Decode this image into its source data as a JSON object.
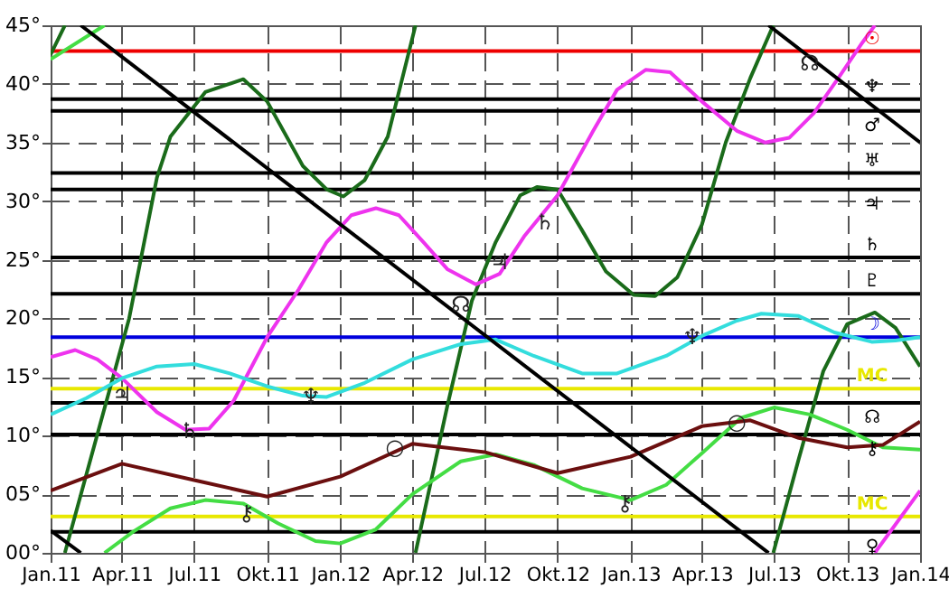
{
  "chart_data": {
    "type": "line",
    "xlim": [
      "2011-01-01",
      "2014-01-01"
    ],
    "xticks": [
      {
        "value": "2011-01-01",
        "label": "Jan.11"
      },
      {
        "value": "2011-04-01",
        "label": "Apr.11"
      },
      {
        "value": "2011-07-01",
        "label": "Jul.11"
      },
      {
        "value": "2011-10-01",
        "label": "Okt.11"
      },
      {
        "value": "2012-01-01",
        "label": "Jan.12"
      },
      {
        "value": "2012-04-01",
        "label": "Apr.12"
      },
      {
        "value": "2012-07-01",
        "label": "Jul.12"
      },
      {
        "value": "2012-10-01",
        "label": "Okt.12"
      },
      {
        "value": "2013-01-01",
        "label": "Jan.13"
      },
      {
        "value": "2013-04-01",
        "label": "Apr.13"
      },
      {
        "value": "2013-07-01",
        "label": "Jul.13"
      },
      {
        "value": "2013-10-01",
        "label": "Okt.13"
      },
      {
        "value": "2014-01-01",
        "label": "Jan.14"
      }
    ],
    "ylim": [
      0,
      45
    ],
    "yticks": [
      {
        "value": 0,
        "label": "00°"
      },
      {
        "value": 5,
        "label": "05°"
      },
      {
        "value": 10,
        "label": "10°"
      },
      {
        "value": 15,
        "label": "15°"
      },
      {
        "value": 20,
        "label": "20°"
      },
      {
        "value": 25,
        "label": "25°"
      },
      {
        "value": 30,
        "label": "30°"
      },
      {
        "value": 35,
        "label": "35°"
      },
      {
        "value": 40,
        "label": "40°"
      },
      {
        "value": 45,
        "label": "45°"
      }
    ],
    "grid": true,
    "marker": "none",
    "line_style": "solid",
    "series": [
      {
        "color": "#1a6b1a",
        "x": [
          "2011-01-01",
          "2011-01-19",
          null,
          "2011-01-19",
          "2011-04-10",
          "2011-05-15",
          "2011-06-01",
          "2011-07-15",
          "2011-09-01",
          "2011-10-01",
          "2011-11-15",
          "2011-12-15",
          "2012-01-05",
          "2012-02-01",
          "2012-03-01",
          "2012-04-05",
          null,
          "2012-04-05",
          "2012-05-15",
          "2012-06-15",
          "2012-07-15",
          "2012-08-15",
          "2012-09-05",
          "2012-10-01",
          "2012-11-01",
          "2012-12-01",
          "2013-01-05",
          "2013-02-01",
          "2013-03-01",
          "2013-04-01",
          "2013-05-01",
          "2013-06-01",
          "2013-06-30",
          null,
          "2013-06-30",
          "2013-08-01",
          "2013-09-01",
          "2013-10-01",
          "2013-11-05",
          "2013-12-01",
          "2014-01-01"
        ],
        "values": [
          42.5,
          45,
          null,
          0,
          20,
          32,
          35.5,
          39.3,
          40.4,
          38.5,
          33,
          31,
          30.4,
          31.8,
          35.5,
          45,
          null,
          0,
          12.5,
          21.5,
          26.5,
          30.5,
          31.2,
          31,
          27.5,
          24,
          22,
          21.9,
          23.5,
          28,
          35,
          40.5,
          45,
          null,
          0,
          8,
          15.5,
          19.5,
          20.5,
          19.2,
          15.9
        ]
      },
      {
        "color": "#44dd44",
        "x": [
          "2011-01-01",
          "2011-03-10",
          null,
          "2011-03-10",
          "2011-04-15",
          "2011-06-01",
          "2011-07-15",
          "2011-09-01",
          "2011-10-15",
          "2011-12-01",
          "2012-01-01",
          "2012-02-15",
          "2012-04-01",
          "2012-06-01",
          "2012-07-15",
          "2012-09-01",
          "2012-11-01",
          "2013-01-01",
          "2013-02-15",
          "2013-04-01",
          "2013-05-20",
          "2013-07-01",
          "2013-08-15",
          "2013-10-01",
          "2013-11-15",
          "2014-01-01"
        ],
        "values": [
          42.1,
          45,
          null,
          0,
          1.8,
          3.8,
          4.5,
          4.2,
          2.5,
          1,
          0.8,
          2,
          5,
          7.8,
          8.4,
          7.5,
          5.5,
          4.5,
          5.8,
          8.5,
          11.5,
          12.4,
          11.8,
          10.5,
          9,
          8.8
        ]
      },
      {
        "color": "#ee33ee",
        "x": [
          "2011-01-01",
          "2011-02-01",
          "2011-03-01",
          "2011-04-01",
          "2011-05-15",
          "2011-06-20",
          "2011-07-20",
          "2011-08-20",
          "2011-10-01",
          "2011-11-10",
          "2011-12-15",
          "2012-01-15",
          "2012-02-15",
          "2012-03-15",
          "2012-04-15",
          "2012-05-15",
          "2012-06-20",
          "2012-07-20",
          "2012-08-20",
          "2012-10-01",
          "2012-11-15",
          "2012-12-15",
          "2013-01-20",
          "2013-02-20",
          "2013-04-01",
          "2013-05-15",
          "2013-06-20",
          "2013-07-20",
          "2013-08-20",
          "2013-09-20",
          "2013-10-20",
          "2013-11-05",
          null,
          "2013-11-05",
          "2014-01-01"
        ],
        "values": [
          16.7,
          17.3,
          16.5,
          14.9,
          12,
          10.5,
          10.6,
          13,
          18.4,
          22.5,
          26.5,
          28.8,
          29.4,
          28.8,
          26.5,
          24.2,
          22.9,
          23.8,
          27,
          30.5,
          36,
          39.5,
          41.2,
          41,
          38.5,
          36,
          35,
          35.4,
          37.5,
          40.5,
          43.5,
          45,
          null,
          0,
          5.3
        ]
      },
      {
        "color": "#33dddd",
        "x": [
          "2011-01-01",
          "2011-02-15",
          "2011-04-01",
          "2011-05-15",
          "2011-07-01",
          "2011-08-15",
          "2011-10-01",
          "2011-11-15",
          "2011-12-15",
          "2012-02-01",
          "2012-04-01",
          "2012-06-01",
          "2012-07-15",
          "2012-09-01",
          "2012-11-01",
          "2012-12-15",
          "2013-02-15",
          "2013-04-01",
          "2013-05-15",
          "2013-06-15",
          "2013-08-01",
          "2013-09-15",
          "2013-11-01",
          "2013-12-01",
          "2014-01-01"
        ],
        "values": [
          11.8,
          13.2,
          14.9,
          15.9,
          16.1,
          15.3,
          14.2,
          13.4,
          13.3,
          14.5,
          16.5,
          17.8,
          18.2,
          16.8,
          15.3,
          15.3,
          16.8,
          18.5,
          19.8,
          20.4,
          20.2,
          18.8,
          18,
          18.1,
          18.4
        ]
      },
      {
        "color": "#6b0f0f",
        "x": [
          "2011-01-01",
          "2011-04-01",
          "2011-07-01",
          "2011-10-01",
          "2012-01-01",
          "2012-04-01",
          "2012-07-01",
          "2012-10-01",
          "2013-01-01",
          "2013-04-01",
          "2013-06-01",
          "2013-08-01",
          "2013-10-01",
          "2013-11-15",
          "2014-01-01"
        ],
        "values": [
          5.3,
          7.6,
          6.2,
          4.8,
          6.5,
          9.3,
          8.6,
          6.8,
          8.2,
          10.8,
          11.3,
          9.8,
          9,
          9.2,
          11.2
        ]
      },
      {
        "color": "#000000",
        "x": [
          "2011-01-01",
          "2011-02-08",
          null,
          "2011-02-08",
          "2013-06-24",
          null,
          "2013-06-24",
          "2014-01-01"
        ],
        "values": [
          1.9,
          0,
          null,
          45,
          0,
          null,
          45,
          35
        ]
      }
    ],
    "ref_lines": [
      {
        "axis": "y",
        "value": 42.8,
        "label": "☉",
        "color": "#ee0000"
      },
      {
        "axis": "y",
        "value": 38.7,
        "label": "♆",
        "color": "#000000"
      },
      {
        "axis": "y",
        "value": 37.7,
        "label": "♂",
        "color": "#000000"
      },
      {
        "axis": "y",
        "value": 32.4,
        "label": "♅",
        "color": "#000000"
      },
      {
        "axis": "y",
        "value": 31.0,
        "label": "♃",
        "color": "#000000"
      },
      {
        "axis": "y",
        "value": 25.2,
        "label": "♄",
        "color": "#000000"
      },
      {
        "axis": "y",
        "value": 22.1,
        "label": "♇",
        "color": "#000000"
      },
      {
        "axis": "y",
        "value": 18.4,
        "label": "☽",
        "color": "#0000dd"
      },
      {
        "axis": "y",
        "value": 14.0,
        "label": "MC",
        "color": "#e8e800"
      },
      {
        "axis": "y",
        "value": 12.8,
        "label": "☊",
        "color": "#000000"
      },
      {
        "axis": "y",
        "value": 10.1,
        "label": "⚷",
        "color": "#000000"
      },
      {
        "axis": "y",
        "value": 3.1,
        "label": "MC",
        "color": "#e8e800"
      },
      {
        "axis": "y",
        "value": 1.8,
        "label": "♀",
        "color": "#000000"
      }
    ],
    "annotations": [
      {
        "text": "♃",
        "x": "2011-04-01",
        "y": 13.5
      },
      {
        "text": "♃",
        "x": "2012-07-20",
        "y": 24.8
      },
      {
        "text": "♄",
        "x": "2011-06-25",
        "y": 10.4
      },
      {
        "text": "♄",
        "x": "2012-09-15",
        "y": 28.2
      },
      {
        "text": "♆",
        "x": "2011-11-25",
        "y": 13.3
      },
      {
        "text": "♆",
        "x": "2013-03-20",
        "y": 18.4
      },
      {
        "text": "⚷",
        "x": "2011-09-05",
        "y": 3.4
      },
      {
        "text": "⚷",
        "x": "2012-12-25",
        "y": 4.2
      },
      {
        "text": "○",
        "x": "2012-03-10",
        "y": 9.0
      },
      {
        "text": "○",
        "x": "2013-05-15",
        "y": 11.2
      },
      {
        "text": "☊",
        "x": "2012-06-01",
        "y": 21.2
      },
      {
        "text": "☊",
        "x": "2013-08-15",
        "y": 41.8
      }
    ]
  }
}
